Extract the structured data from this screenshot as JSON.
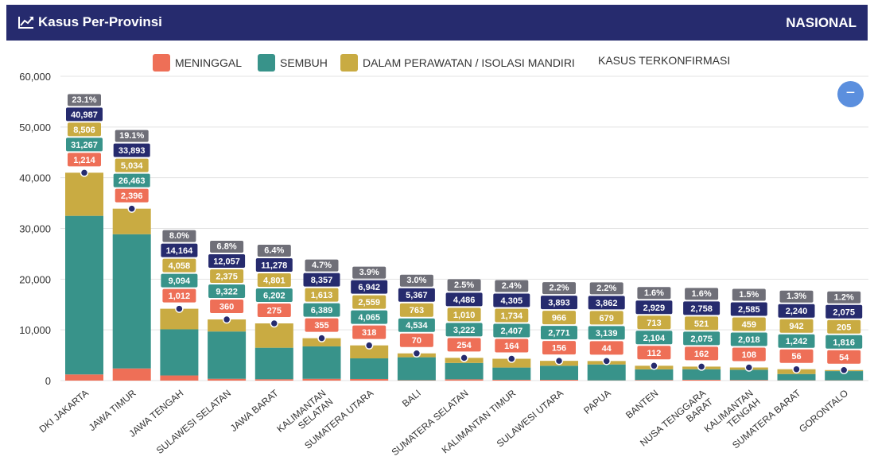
{
  "header": {
    "icon": "line-chart-icon",
    "title": "Kasus Per-Provinsi",
    "scope": "NASIONAL"
  },
  "legend": [
    {
      "label": "MENINGGAL",
      "color": "#ee6f57"
    },
    {
      "label": "SEMBUH",
      "color": "#38938a"
    },
    {
      "label": "DALAM PERAWATAN / ISOLASI MANDIRI",
      "color": "#c9ab42"
    },
    {
      "label": "KASUS TERKONFIRMASI",
      "color": "#262b6e"
    }
  ],
  "zoom_button": {
    "icon": "minus-icon",
    "label": "−"
  },
  "chart_data": {
    "type": "bar",
    "stacked": true,
    "ylim": [
      0,
      60000
    ],
    "yticks": [
      0,
      10000,
      20000,
      30000,
      40000,
      50000,
      60000
    ],
    "ytick_labels": [
      "0",
      "10,000",
      "20,000",
      "30,000",
      "40,000",
      "50,000",
      "60,000"
    ],
    "grid": true,
    "legend_position": "top-center",
    "categories": [
      [
        "DKI JAKARTA"
      ],
      [
        "JAWA TIMUR"
      ],
      [
        "JAWA TENGAH"
      ],
      [
        "SULAWESI SELATAN"
      ],
      [
        "JAWA BARAT"
      ],
      [
        "KALIMANTAN",
        "SELATAN"
      ],
      [
        "SUMATERA UTARA"
      ],
      [
        "BALI"
      ],
      [
        "SUMATERA SELATAN"
      ],
      [
        "KALIMANTAN TIMUR"
      ],
      [
        "SULAWESI UTARA"
      ],
      [
        "PAPUA"
      ],
      [
        "BANTEN"
      ],
      [
        "NUSA TENGGARA",
        "BARAT"
      ],
      [
        "KALIMANTAN",
        "TENGAH"
      ],
      [
        "SUMATERA BARAT"
      ],
      [
        "GORONTALO"
      ]
    ],
    "series": [
      {
        "name": "MENINGGAL",
        "color": "#ee6f57",
        "values": [
          1214,
          2396,
          1012,
          360,
          275,
          355,
          318,
          70,
          254,
          164,
          156,
          44,
          112,
          162,
          108,
          56,
          54
        ]
      },
      {
        "name": "SEMBUH",
        "color": "#38938a",
        "values": [
          31267,
          26463,
          9094,
          9322,
          6202,
          6389,
          4065,
          4534,
          3222,
          2407,
          2771,
          3139,
          2104,
          2075,
          2018,
          1242,
          1816
        ]
      },
      {
        "name": "DALAM PERAWATAN / ISOLASI MANDIRI",
        "color": "#c9ab42",
        "values": [
          8506,
          5034,
          4058,
          2375,
          4801,
          1613,
          2559,
          763,
          1010,
          1734,
          966,
          679,
          713,
          521,
          459,
          942,
          205
        ]
      }
    ],
    "confirmed": {
      "name": "KASUS TERKONFIRMASI",
      "color": "#262b6e",
      "values": [
        40987,
        33893,
        14164,
        12057,
        11278,
        8357,
        6942,
        5367,
        4486,
        4305,
        3893,
        3862,
        2929,
        2758,
        2585,
        2240,
        2075
      ]
    },
    "percent_labels": [
      "23.1%",
      "19.1%",
      "8.0%",
      "6.8%",
      "6.4%",
      "4.7%",
      "3.9%",
      "3.0%",
      "2.5%",
      "2.4%",
      "2.2%",
      "2.2%",
      "1.6%",
      "1.6%",
      "1.5%",
      "1.3%",
      "1.2%"
    ],
    "percent_color": "#6f6f78"
  }
}
